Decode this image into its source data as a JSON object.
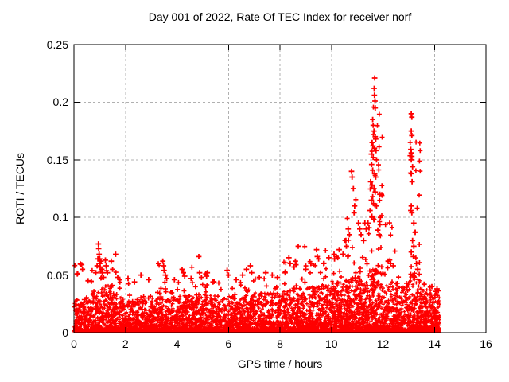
{
  "chart_data": {
    "type": "scatter",
    "title": "Day 001 of 2022, Rate Of TEC Index for receiver norf",
    "xlabel": "GPS time / hours",
    "ylabel": "ROTI / TECUs",
    "xlim": [
      0,
      16
    ],
    "ylim": [
      0,
      0.25
    ],
    "xticks": [
      0,
      2,
      4,
      6,
      8,
      10,
      12,
      14,
      16
    ],
    "yticks": [
      0,
      0.05,
      0.1,
      0.15,
      0.2,
      0.25
    ],
    "xtick_labels": [
      "0",
      "2",
      "4",
      "6",
      "8",
      "10",
      "12",
      "14",
      "16"
    ],
    "ytick_labels": [
      "0",
      "0.05",
      "0.1",
      "0.15",
      "0.2",
      "0.25"
    ],
    "grid": true,
    "legend_position": "none",
    "marker_glyph": "plus",
    "marker_color": "#ff0000",
    "series_name": "ROTI",
    "data_time_range": [
      0,
      14.2
    ],
    "outlier_points": [
      [
        0.13,
        0.051
      ],
      [
        0.25,
        0.0595
      ],
      [
        0.3,
        0.059
      ],
      [
        0.33,
        0.055
      ],
      [
        0.55,
        0.045
      ],
      [
        0.85,
        0.052
      ],
      [
        0.9,
        0.058
      ],
      [
        0.93,
        0.064
      ],
      [
        0.95,
        0.077
      ],
      [
        0.96,
        0.073
      ],
      [
        0.98,
        0.068
      ],
      [
        1.0,
        0.064
      ],
      [
        1.0,
        0.06
      ],
      [
        1.02,
        0.057
      ],
      [
        1.05,
        0.062
      ],
      [
        1.08,
        0.055
      ],
      [
        1.1,
        0.052
      ],
      [
        1.15,
        0.048
      ],
      [
        1.22,
        0.063
      ],
      [
        1.25,
        0.058
      ],
      [
        1.3,
        0.052
      ],
      [
        1.45,
        0.062
      ],
      [
        1.5,
        0.055
      ],
      [
        1.62,
        0.068
      ],
      [
        1.7,
        0.048
      ],
      [
        2.1,
        0.047
      ],
      [
        2.35,
        0.044
      ],
      [
        2.6,
        0.05
      ],
      [
        2.9,
        0.046
      ],
      [
        3.45,
        0.062
      ],
      [
        3.48,
        0.058
      ],
      [
        3.5,
        0.054
      ],
      [
        3.55,
        0.05
      ],
      [
        3.6,
        0.047
      ],
      [
        3.9,
        0.046
      ],
      [
        4.2,
        0.055
      ],
      [
        4.25,
        0.052
      ],
      [
        4.3,
        0.049
      ],
      [
        4.55,
        0.047
      ],
      [
        4.85,
        0.066
      ],
      [
        4.88,
        0.052
      ],
      [
        4.95,
        0.048
      ],
      [
        5.12,
        0.051
      ],
      [
        5.15,
        0.049
      ],
      [
        5.18,
        0.052
      ],
      [
        5.4,
        0.044
      ],
      [
        5.95,
        0.054
      ],
      [
        6.0,
        0.05
      ],
      [
        6.3,
        0.046
      ],
      [
        6.55,
        0.05
      ],
      [
        6.7,
        0.055
      ],
      [
        6.85,
        0.058
      ],
      [
        6.9,
        0.052
      ],
      [
        7.2,
        0.048
      ],
      [
        7.45,
        0.052
      ],
      [
        7.7,
        0.05
      ],
      [
        7.9,
        0.048
      ],
      [
        8.2,
        0.052
      ],
      [
        8.35,
        0.065
      ],
      [
        8.4,
        0.06
      ],
      [
        8.55,
        0.057
      ],
      [
        8.6,
        0.062
      ],
      [
        8.62,
        0.059
      ],
      [
        8.71,
        0.075
      ],
      [
        9.0,
        0.055
      ],
      [
        9.2,
        0.06
      ],
      [
        9.42,
        0.072
      ],
      [
        9.45,
        0.066
      ],
      [
        9.5,
        0.064
      ],
      [
        9.7,
        0.06
      ],
      [
        9.9,
        0.065
      ],
      [
        10.1,
        0.068
      ],
      [
        10.12,
        0.064
      ],
      [
        10.3,
        0.072
      ],
      [
        10.45,
        0.068
      ],
      [
        10.56,
        0.08
      ],
      [
        10.58,
        0.075
      ],
      [
        10.65,
        0.09
      ],
      [
        10.7,
        0.085
      ],
      [
        10.78,
        0.14
      ],
      [
        10.8,
        0.135
      ],
      [
        10.85,
        0.125
      ],
      [
        10.88,
        0.104
      ],
      [
        10.9,
        0.11
      ],
      [
        11.05,
        0.095
      ],
      [
        11.1,
        0.09
      ],
      [
        11.15,
        0.085
      ],
      [
        11.25,
        0.08
      ],
      [
        11.3,
        0.095
      ],
      [
        11.35,
        0.09
      ],
      [
        11.68,
        0.221
      ],
      [
        11.66,
        0.212
      ],
      [
        11.67,
        0.206
      ],
      [
        11.69,
        0.201
      ],
      [
        11.7,
        0.195
      ],
      [
        11.6,
        0.185
      ],
      [
        11.62,
        0.18
      ],
      [
        11.65,
        0.175
      ],
      [
        11.63,
        0.172
      ],
      [
        11.7,
        0.17
      ],
      [
        11.72,
        0.168
      ],
      [
        11.58,
        0.165
      ],
      [
        11.61,
        0.162
      ],
      [
        11.67,
        0.16
      ],
      [
        11.73,
        0.158
      ],
      [
        11.55,
        0.155
      ],
      [
        11.62,
        0.152
      ],
      [
        11.75,
        0.15
      ],
      [
        11.56,
        0.146
      ],
      [
        11.6,
        0.141
      ],
      [
        11.68,
        0.138
      ],
      [
        11.72,
        0.135
      ],
      [
        11.52,
        0.131
      ],
      [
        11.58,
        0.128
      ],
      [
        11.65,
        0.125
      ],
      [
        11.7,
        0.122
      ],
      [
        11.6,
        0.118
      ],
      [
        11.55,
        0.115
      ],
      [
        11.63,
        0.112
      ],
      [
        11.75,
        0.11
      ],
      [
        11.5,
        0.106
      ],
      [
        11.57,
        0.101
      ],
      [
        11.65,
        0.098
      ],
      [
        11.42,
        0.095
      ],
      [
        11.46,
        0.091
      ],
      [
        11.8,
        0.089
      ],
      [
        11.85,
        0.085
      ],
      [
        11.88,
        0.12
      ],
      [
        11.9,
        0.1
      ],
      [
        12.2,
        0.062
      ],
      [
        12.3,
        0.06
      ],
      [
        12.4,
        0.058
      ],
      [
        13.1,
        0.19
      ],
      [
        13.12,
        0.187
      ],
      [
        13.1,
        0.175
      ],
      [
        13.12,
        0.171
      ],
      [
        13.08,
        0.159
      ],
      [
        13.1,
        0.156
      ],
      [
        13.12,
        0.153
      ],
      [
        13.1,
        0.15
      ],
      [
        13.15,
        0.144
      ],
      [
        13.1,
        0.138
      ],
      [
        13.13,
        0.131
      ],
      [
        13.1,
        0.11
      ],
      [
        13.08,
        0.106
      ],
      [
        13.12,
        0.104
      ],
      [
        13.2,
        0.095
      ],
      [
        13.25,
        0.087
      ],
      [
        13.15,
        0.08
      ],
      [
        13.2,
        0.075
      ],
      [
        13.1,
        0.07
      ],
      [
        13.18,
        0.066
      ],
      [
        13.3,
        0.06
      ],
      [
        13.35,
        0.055
      ],
      [
        13.6,
        0.042
      ],
      [
        13.9,
        0.04
      ],
      [
        14.1,
        0.038
      ]
    ],
    "dense_band_bins": [
      [
        0,
        0.5,
        0.028,
        0.06,
        200
      ],
      [
        0.5,
        1,
        0.034,
        0.055,
        200
      ],
      [
        1,
        1.5,
        0.04,
        0.072,
        220
      ],
      [
        1.5,
        2,
        0.03,
        0.068,
        180
      ],
      [
        2,
        2.5,
        0.027,
        0.048,
        170
      ],
      [
        2.5,
        3,
        0.028,
        0.05,
        170
      ],
      [
        3,
        3.5,
        0.03,
        0.063,
        180
      ],
      [
        3.5,
        4,
        0.03,
        0.055,
        180
      ],
      [
        4,
        4.5,
        0.031,
        0.056,
        180
      ],
      [
        4.5,
        5,
        0.03,
        0.066,
        180
      ],
      [
        5,
        5.5,
        0.032,
        0.052,
        190
      ],
      [
        5.5,
        6,
        0.029,
        0.046,
        180
      ],
      [
        6,
        6.5,
        0.031,
        0.054,
        190
      ],
      [
        6.5,
        7,
        0.032,
        0.058,
        190
      ],
      [
        7,
        7.5,
        0.034,
        0.052,
        200
      ],
      [
        7.5,
        8,
        0.034,
        0.053,
        200
      ],
      [
        8,
        8.5,
        0.035,
        0.065,
        200
      ],
      [
        8.5,
        9,
        0.037,
        0.075,
        200
      ],
      [
        9,
        9.5,
        0.039,
        0.072,
        210
      ],
      [
        9.5,
        10,
        0.041,
        0.072,
        210
      ],
      [
        10,
        10.5,
        0.044,
        0.08,
        220
      ],
      [
        10.5,
        11,
        0.045,
        0.12,
        230
      ],
      [
        11,
        11.5,
        0.048,
        0.095,
        230
      ],
      [
        11.5,
        12,
        0.055,
        0.2,
        260
      ],
      [
        12,
        12.5,
        0.044,
        0.1,
        220
      ],
      [
        12.5,
        13,
        0.04,
        0.065,
        210
      ],
      [
        13,
        13.5,
        0.048,
        0.17,
        240
      ],
      [
        13.5,
        14,
        0.037,
        0.042,
        230
      ],
      [
        14,
        14.2,
        0.035,
        0.04,
        110
      ]
    ]
  },
  "colors": {
    "marker": "#ff0000",
    "axis": "#000000",
    "grid": "#b0b0b0",
    "background": "#ffffff",
    "text": "#000000"
  }
}
